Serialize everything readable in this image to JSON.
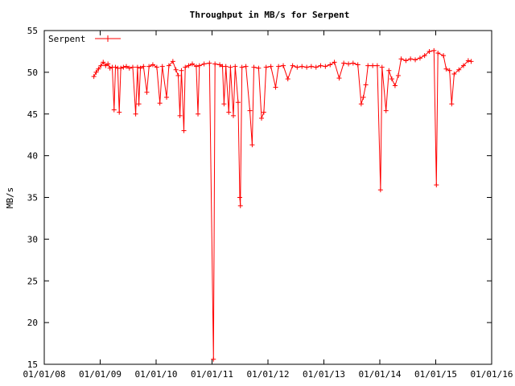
{
  "chart_data": {
    "type": "line",
    "title": "Throughput in MB/s for Serpent",
    "xlabel": "",
    "ylabel": "MB/s",
    "ylim": [
      15,
      55
    ],
    "xlim": [
      "2008-01-01",
      "2016-01-01"
    ],
    "yticks": [
      "15",
      "20",
      "25",
      "30",
      "35",
      "40",
      "45",
      "50",
      "55"
    ],
    "xticks": [
      "01/01/08",
      "01/01/09",
      "01/01/10",
      "01/01/11",
      "01/01/12",
      "01/01/13",
      "01/01/14",
      "01/01/15",
      "01/01/16"
    ],
    "legend_position": "top-left",
    "grid": false,
    "series": [
      {
        "name": "Serpent",
        "color": "#ff0000",
        "marker": "plus",
        "points": [
          [
            "2008-11-20",
            49.5
          ],
          [
            "2008-12-05",
            50.0
          ],
          [
            "2008-12-20",
            50.4
          ],
          [
            "2009-01-05",
            50.8
          ],
          [
            "2009-01-20",
            51.2
          ],
          [
            "2009-02-05",
            50.8
          ],
          [
            "2009-02-20",
            51.0
          ],
          [
            "2009-03-05",
            50.5
          ],
          [
            "2009-03-20",
            50.6
          ],
          [
            "2009-04-01",
            45.5
          ],
          [
            "2009-04-10",
            50.6
          ],
          [
            "2009-04-25",
            50.5
          ],
          [
            "2009-05-05",
            45.2
          ],
          [
            "2009-05-15",
            50.5
          ],
          [
            "2009-06-01",
            50.6
          ],
          [
            "2009-06-20",
            50.7
          ],
          [
            "2009-07-10",
            50.5
          ],
          [
            "2009-08-01",
            50.6
          ],
          [
            "2009-08-20",
            45.0
          ],
          [
            "2009-09-01",
            50.6
          ],
          [
            "2009-09-10",
            46.2
          ],
          [
            "2009-09-20",
            50.5
          ],
          [
            "2009-10-10",
            50.7
          ],
          [
            "2009-11-01",
            47.6
          ],
          [
            "2009-11-15",
            50.7
          ],
          [
            "2009-12-10",
            50.9
          ],
          [
            "2010-01-05",
            50.6
          ],
          [
            "2010-01-25",
            46.3
          ],
          [
            "2010-02-10",
            50.7
          ],
          [
            "2010-03-10",
            47.0
          ],
          [
            "2010-03-25",
            50.8
          ],
          [
            "2010-04-20",
            51.3
          ],
          [
            "2010-05-10",
            50.3
          ],
          [
            "2010-05-25",
            49.6
          ],
          [
            "2010-06-05",
            44.8
          ],
          [
            "2010-06-15",
            50.2
          ],
          [
            "2010-07-01",
            43.0
          ],
          [
            "2010-07-10",
            50.6
          ],
          [
            "2010-08-01",
            50.8
          ],
          [
            "2010-08-25",
            51.0
          ],
          [
            "2010-09-20",
            50.7
          ],
          [
            "2010-10-01",
            45.0
          ],
          [
            "2010-10-10",
            50.8
          ],
          [
            "2010-11-10",
            51.0
          ],
          [
            "2010-12-15",
            51.1
          ],
          [
            "2011-01-10",
            15.6
          ],
          [
            "2011-01-20",
            51.0
          ],
          [
            "2011-02-20",
            50.9
          ],
          [
            "2011-03-10",
            50.7
          ],
          [
            "2011-03-20",
            46.2
          ],
          [
            "2011-04-01",
            50.7
          ],
          [
            "2011-04-20",
            45.2
          ],
          [
            "2011-05-01",
            50.6
          ],
          [
            "2011-05-20",
            44.8
          ],
          [
            "2011-06-01",
            50.7
          ],
          [
            "2011-06-20",
            46.4
          ],
          [
            "2011-07-01",
            35.0
          ],
          [
            "2011-07-05",
            34.0
          ],
          [
            "2011-07-15",
            50.6
          ],
          [
            "2011-08-10",
            50.7
          ],
          [
            "2011-09-05",
            45.4
          ],
          [
            "2011-09-20",
            41.3
          ],
          [
            "2011-10-01",
            50.6
          ],
          [
            "2011-11-01",
            50.5
          ],
          [
            "2011-11-20",
            44.5
          ],
          [
            "2011-12-05",
            45.2
          ],
          [
            "2011-12-20",
            50.6
          ],
          [
            "2012-01-20",
            50.7
          ],
          [
            "2012-02-20",
            48.2
          ],
          [
            "2012-03-10",
            50.7
          ],
          [
            "2012-04-10",
            50.8
          ],
          [
            "2012-05-10",
            49.2
          ],
          [
            "2012-06-10",
            50.8
          ],
          [
            "2012-07-10",
            50.6
          ],
          [
            "2012-08-10",
            50.7
          ],
          [
            "2012-09-10",
            50.6
          ],
          [
            "2012-10-10",
            50.7
          ],
          [
            "2012-11-10",
            50.6
          ],
          [
            "2012-12-10",
            50.8
          ],
          [
            "2013-01-10",
            50.7
          ],
          [
            "2013-02-10",
            50.9
          ],
          [
            "2013-03-10",
            51.2
          ],
          [
            "2013-04-10",
            49.3
          ],
          [
            "2013-05-10",
            51.1
          ],
          [
            "2013-06-10",
            51.0
          ],
          [
            "2013-07-10",
            51.1
          ],
          [
            "2013-08-10",
            50.9
          ],
          [
            "2013-09-01",
            46.2
          ],
          [
            "2013-09-15",
            47.0
          ],
          [
            "2013-10-01",
            48.5
          ],
          [
            "2013-10-15",
            50.8
          ],
          [
            "2013-11-15",
            50.8
          ],
          [
            "2013-12-15",
            50.8
          ],
          [
            "2014-01-05",
            35.9
          ],
          [
            "2014-01-15",
            50.6
          ],
          [
            "2014-02-10",
            45.4
          ],
          [
            "2014-03-01",
            50.2
          ],
          [
            "2014-03-20",
            49.2
          ],
          [
            "2014-04-10",
            48.4
          ],
          [
            "2014-05-01",
            49.6
          ],
          [
            "2014-05-20",
            51.6
          ],
          [
            "2014-06-20",
            51.4
          ],
          [
            "2014-07-20",
            51.6
          ],
          [
            "2014-08-20",
            51.5
          ],
          [
            "2014-09-20",
            51.7
          ],
          [
            "2014-10-20",
            52.0
          ],
          [
            "2014-11-20",
            52.5
          ],
          [
            "2014-12-20",
            52.6
          ],
          [
            "2015-01-05",
            36.5
          ],
          [
            "2015-01-15",
            52.3
          ],
          [
            "2015-02-20",
            52.0
          ],
          [
            "2015-03-10",
            50.4
          ],
          [
            "2015-04-01",
            50.2
          ],
          [
            "2015-04-15",
            46.2
          ],
          [
            "2015-05-01",
            49.8
          ],
          [
            "2015-06-01",
            50.3
          ],
          [
            "2015-07-01",
            50.8
          ],
          [
            "2015-08-01",
            51.4
          ],
          [
            "2015-08-20",
            51.3
          ]
        ]
      }
    ]
  }
}
